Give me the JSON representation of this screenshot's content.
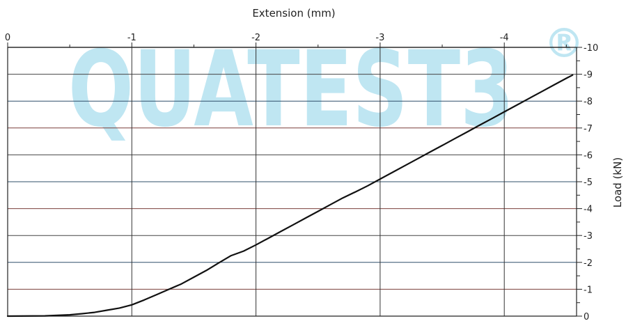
{
  "chart_data": {
    "type": "line",
    "title": "",
    "xlabel": "Extension (mm)",
    "ylabel": "Load (kN)",
    "xlim": [
      0,
      -4.5
    ],
    "ylim": [
      0,
      -10
    ],
    "x_ticks": [
      0,
      -1,
      -2,
      -3,
      -4
    ],
    "x_tick_labels": [
      "0",
      "-1",
      "-2",
      "-3",
      "-4"
    ],
    "y_ticks": [
      0,
      -1,
      -2,
      -3,
      -4,
      -5,
      -6,
      -7,
      -8,
      -9,
      -10
    ],
    "y_tick_labels": [
      "0",
      "-1",
      "-2",
      "-3",
      "-4",
      "-5",
      "-6",
      "-7",
      "-8",
      "-9",
      "-10"
    ],
    "x_axis_position": "top",
    "y_axis_position": "right",
    "grid": true,
    "watermark": {
      "text": "QUATEST3",
      "mark": "®"
    },
    "colors": {
      "line": "#111111",
      "vertical_grid": "#333333",
      "horizontal_grid": [
        "#444444",
        "#7a3f3a",
        "#2f4f6a"
      ],
      "watermark": "#bfe6f2"
    },
    "series": [
      {
        "points": [
          [
            0.0,
            0.0
          ],
          [
            -0.3,
            -0.01
          ],
          [
            -0.5,
            -0.05
          ],
          [
            -0.6,
            -0.09
          ],
          [
            -0.7,
            -0.14
          ],
          [
            -0.8,
            -0.22
          ],
          [
            -0.9,
            -0.3
          ],
          [
            -1.0,
            -0.42
          ],
          [
            -1.1,
            -0.6
          ],
          [
            -1.2,
            -0.8
          ],
          [
            -1.3,
            -1.0
          ],
          [
            -1.4,
            -1.2
          ],
          [
            -1.5,
            -1.45
          ],
          [
            -1.6,
            -1.7
          ],
          [
            -1.7,
            -1.98
          ],
          [
            -1.8,
            -2.25
          ],
          [
            -1.9,
            -2.42
          ],
          [
            -2.0,
            -2.65
          ],
          [
            -2.1,
            -2.9
          ],
          [
            -2.2,
            -3.15
          ],
          [
            -2.3,
            -3.4
          ],
          [
            -2.4,
            -3.65
          ],
          [
            -2.5,
            -3.9
          ],
          [
            -2.6,
            -4.15
          ],
          [
            -2.7,
            -4.4
          ],
          [
            -2.8,
            -4.62
          ],
          [
            -2.9,
            -4.85
          ],
          [
            -3.0,
            -5.1
          ],
          [
            -3.1,
            -5.35
          ],
          [
            -3.2,
            -5.6
          ],
          [
            -3.3,
            -5.85
          ],
          [
            -3.4,
            -6.1
          ],
          [
            -3.5,
            -6.35
          ],
          [
            -3.6,
            -6.6
          ],
          [
            -3.7,
            -6.85
          ],
          [
            -3.8,
            -7.1
          ],
          [
            -3.9,
            -7.35
          ],
          [
            -4.0,
            -7.6
          ],
          [
            -4.1,
            -7.85
          ],
          [
            -4.2,
            -8.1
          ],
          [
            -4.3,
            -8.35
          ],
          [
            -4.4,
            -8.6
          ],
          [
            -4.5,
            -8.85
          ],
          [
            -4.55,
            -8.97
          ]
        ]
      }
    ]
  }
}
